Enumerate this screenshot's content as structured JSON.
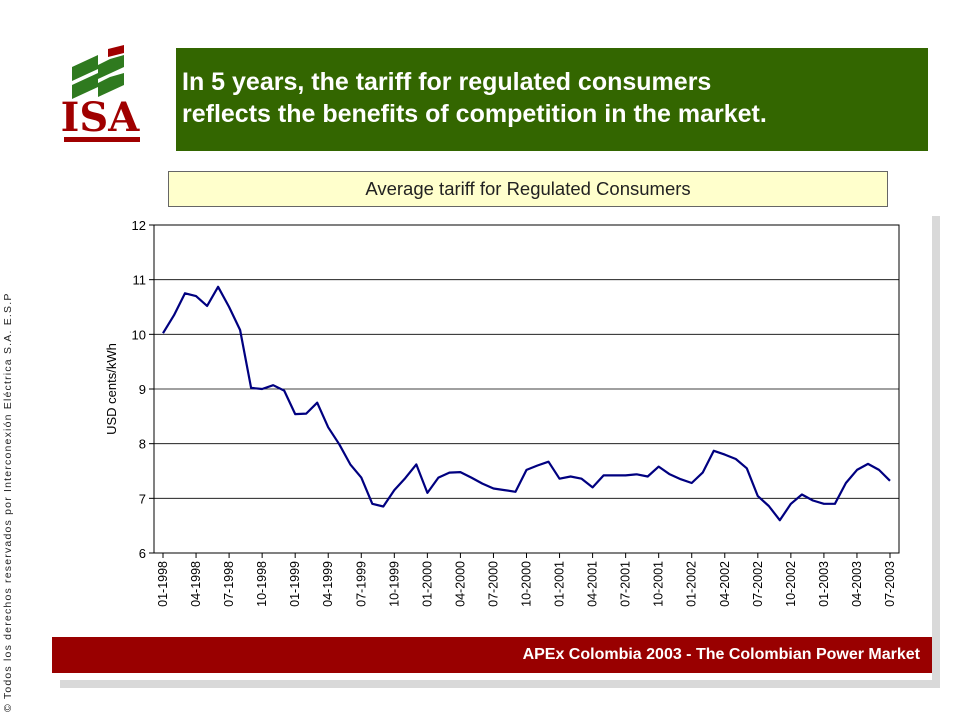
{
  "side_copyright": "© Todos los derechos reservados por Interconexión Eléctrica S.A. E.S.P",
  "logo": {
    "text": "ISA",
    "color": "#a00000"
  },
  "header": {
    "title_line1": "In 5 years, the tariff for regulated consumers",
    "title_line2": "reflects the benefits of competition in the market."
  },
  "chart_title": "Average tariff for Regulated Consumers",
  "footer": {
    "text": "APEx Colombia 2003 - The Colombian Power Market"
  },
  "colors": {
    "header_bg": "#336600",
    "footer_bg": "#990000",
    "subtitle_bg": "#ffffcc",
    "line": "#000080"
  },
  "chart_data": {
    "type": "line",
    "ylabel": "USD cents/kWh",
    "xlabel": "",
    "ylim": [
      6,
      12
    ],
    "yticks": [
      6,
      7,
      8,
      9,
      10,
      11,
      12
    ],
    "grid": true,
    "x_tick_labels": [
      "01-1998",
      "04-1998",
      "07-1998",
      "10-1998",
      "01-1999",
      "04-1999",
      "07-1999",
      "10-1999",
      "01-2000",
      "04-2000",
      "07-2000",
      "10-2000",
      "01-2001",
      "04-2001",
      "07-2001",
      "10-2001",
      "01-2002",
      "04-2002",
      "07-2002",
      "10-2002",
      "01-2003",
      "04-2003",
      "07-2003"
    ],
    "x": [
      "01-1998",
      "02-1998",
      "03-1998",
      "04-1998",
      "05-1998",
      "06-1998",
      "07-1998",
      "08-1998",
      "09-1998",
      "10-1998",
      "11-1998",
      "12-1998",
      "01-1999",
      "02-1999",
      "03-1999",
      "04-1999",
      "05-1999",
      "06-1999",
      "07-1999",
      "08-1999",
      "09-1999",
      "10-1999",
      "11-1999",
      "12-1999",
      "01-2000",
      "02-2000",
      "03-2000",
      "04-2000",
      "05-2000",
      "06-2000",
      "07-2000",
      "08-2000",
      "09-2000",
      "10-2000",
      "11-2000",
      "12-2000",
      "01-2001",
      "02-2001",
      "03-2001",
      "04-2001",
      "05-2001",
      "06-2001",
      "07-2001",
      "08-2001",
      "09-2001",
      "10-2001",
      "11-2001",
      "12-2001",
      "01-2002",
      "02-2002",
      "03-2002",
      "04-2002",
      "05-2002",
      "06-2002",
      "07-2002",
      "08-2002",
      "09-2002",
      "10-2002",
      "11-2002",
      "12-2002",
      "01-2003",
      "02-2003",
      "03-2003",
      "04-2003",
      "05-2003",
      "06-2003",
      "07-2003"
    ],
    "series": [
      {
        "values": [
          10.02,
          10.35,
          10.75,
          10.7,
          10.52,
          10.87,
          10.5,
          10.08,
          9.02,
          9.0,
          9.07,
          8.97,
          8.54,
          8.55,
          8.75,
          8.3,
          7.99,
          7.62,
          7.38,
          6.9,
          6.85,
          7.15,
          7.37,
          7.62,
          7.1,
          7.38,
          7.47,
          7.48,
          7.38,
          7.27,
          7.18,
          7.15,
          7.12,
          7.52,
          7.6,
          7.67,
          7.36,
          7.4,
          7.36,
          7.2,
          7.42,
          7.42,
          7.42,
          7.44,
          7.4,
          7.58,
          7.44,
          7.35,
          7.28,
          7.47,
          7.87,
          7.8,
          7.72,
          7.55,
          7.04,
          6.86,
          6.6,
          6.9,
          7.07,
          6.96,
          6.9,
          6.9,
          7.28,
          7.52,
          7.63,
          7.52,
          7.32
        ]
      }
    ]
  }
}
